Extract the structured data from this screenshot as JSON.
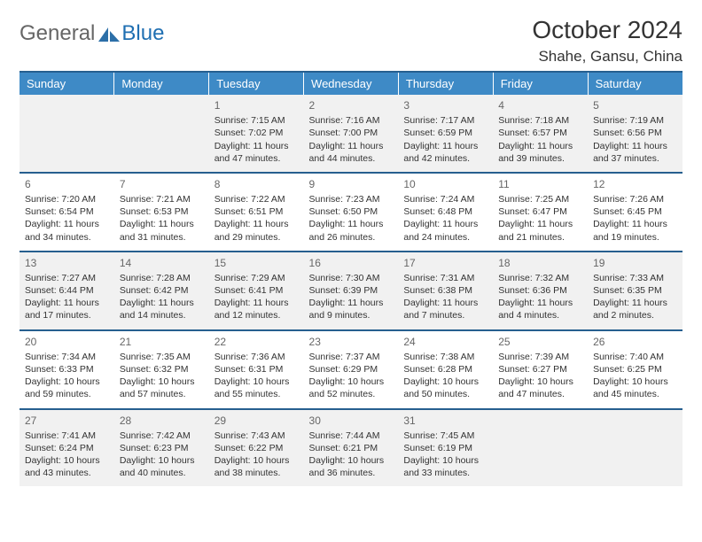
{
  "logo": {
    "part1": "General",
    "part2": "Blue"
  },
  "title": "October 2024",
  "location": "Shahe, Gansu, China",
  "colors": {
    "header_bg": "#3e8ac6",
    "divider": "#265f8f",
    "shade": "#f1f1f1",
    "text": "#333333",
    "logo_blue": "#1f6fb2"
  },
  "day_headers": [
    "Sunday",
    "Monday",
    "Tuesday",
    "Wednesday",
    "Thursday",
    "Friday",
    "Saturday"
  ],
  "weeks": [
    [
      null,
      null,
      {
        "n": "1",
        "sr": "Sunrise: 7:15 AM",
        "ss": "Sunset: 7:02 PM",
        "d1": "Daylight: 11 hours",
        "d2": "and 47 minutes."
      },
      {
        "n": "2",
        "sr": "Sunrise: 7:16 AM",
        "ss": "Sunset: 7:00 PM",
        "d1": "Daylight: 11 hours",
        "d2": "and 44 minutes."
      },
      {
        "n": "3",
        "sr": "Sunrise: 7:17 AM",
        "ss": "Sunset: 6:59 PM",
        "d1": "Daylight: 11 hours",
        "d2": "and 42 minutes."
      },
      {
        "n": "4",
        "sr": "Sunrise: 7:18 AM",
        "ss": "Sunset: 6:57 PM",
        "d1": "Daylight: 11 hours",
        "d2": "and 39 minutes."
      },
      {
        "n": "5",
        "sr": "Sunrise: 7:19 AM",
        "ss": "Sunset: 6:56 PM",
        "d1": "Daylight: 11 hours",
        "d2": "and 37 minutes."
      }
    ],
    [
      {
        "n": "6",
        "sr": "Sunrise: 7:20 AM",
        "ss": "Sunset: 6:54 PM",
        "d1": "Daylight: 11 hours",
        "d2": "and 34 minutes."
      },
      {
        "n": "7",
        "sr": "Sunrise: 7:21 AM",
        "ss": "Sunset: 6:53 PM",
        "d1": "Daylight: 11 hours",
        "d2": "and 31 minutes."
      },
      {
        "n": "8",
        "sr": "Sunrise: 7:22 AM",
        "ss": "Sunset: 6:51 PM",
        "d1": "Daylight: 11 hours",
        "d2": "and 29 minutes."
      },
      {
        "n": "9",
        "sr": "Sunrise: 7:23 AM",
        "ss": "Sunset: 6:50 PM",
        "d1": "Daylight: 11 hours",
        "d2": "and 26 minutes."
      },
      {
        "n": "10",
        "sr": "Sunrise: 7:24 AM",
        "ss": "Sunset: 6:48 PM",
        "d1": "Daylight: 11 hours",
        "d2": "and 24 minutes."
      },
      {
        "n": "11",
        "sr": "Sunrise: 7:25 AM",
        "ss": "Sunset: 6:47 PM",
        "d1": "Daylight: 11 hours",
        "d2": "and 21 minutes."
      },
      {
        "n": "12",
        "sr": "Sunrise: 7:26 AM",
        "ss": "Sunset: 6:45 PM",
        "d1": "Daylight: 11 hours",
        "d2": "and 19 minutes."
      }
    ],
    [
      {
        "n": "13",
        "sr": "Sunrise: 7:27 AM",
        "ss": "Sunset: 6:44 PM",
        "d1": "Daylight: 11 hours",
        "d2": "and 17 minutes."
      },
      {
        "n": "14",
        "sr": "Sunrise: 7:28 AM",
        "ss": "Sunset: 6:42 PM",
        "d1": "Daylight: 11 hours",
        "d2": "and 14 minutes."
      },
      {
        "n": "15",
        "sr": "Sunrise: 7:29 AM",
        "ss": "Sunset: 6:41 PM",
        "d1": "Daylight: 11 hours",
        "d2": "and 12 minutes."
      },
      {
        "n": "16",
        "sr": "Sunrise: 7:30 AM",
        "ss": "Sunset: 6:39 PM",
        "d1": "Daylight: 11 hours",
        "d2": "and 9 minutes."
      },
      {
        "n": "17",
        "sr": "Sunrise: 7:31 AM",
        "ss": "Sunset: 6:38 PM",
        "d1": "Daylight: 11 hours",
        "d2": "and 7 minutes."
      },
      {
        "n": "18",
        "sr": "Sunrise: 7:32 AM",
        "ss": "Sunset: 6:36 PM",
        "d1": "Daylight: 11 hours",
        "d2": "and 4 minutes."
      },
      {
        "n": "19",
        "sr": "Sunrise: 7:33 AM",
        "ss": "Sunset: 6:35 PM",
        "d1": "Daylight: 11 hours",
        "d2": "and 2 minutes."
      }
    ],
    [
      {
        "n": "20",
        "sr": "Sunrise: 7:34 AM",
        "ss": "Sunset: 6:33 PM",
        "d1": "Daylight: 10 hours",
        "d2": "and 59 minutes."
      },
      {
        "n": "21",
        "sr": "Sunrise: 7:35 AM",
        "ss": "Sunset: 6:32 PM",
        "d1": "Daylight: 10 hours",
        "d2": "and 57 minutes."
      },
      {
        "n": "22",
        "sr": "Sunrise: 7:36 AM",
        "ss": "Sunset: 6:31 PM",
        "d1": "Daylight: 10 hours",
        "d2": "and 55 minutes."
      },
      {
        "n": "23",
        "sr": "Sunrise: 7:37 AM",
        "ss": "Sunset: 6:29 PM",
        "d1": "Daylight: 10 hours",
        "d2": "and 52 minutes."
      },
      {
        "n": "24",
        "sr": "Sunrise: 7:38 AM",
        "ss": "Sunset: 6:28 PM",
        "d1": "Daylight: 10 hours",
        "d2": "and 50 minutes."
      },
      {
        "n": "25",
        "sr": "Sunrise: 7:39 AM",
        "ss": "Sunset: 6:27 PM",
        "d1": "Daylight: 10 hours",
        "d2": "and 47 minutes."
      },
      {
        "n": "26",
        "sr": "Sunrise: 7:40 AM",
        "ss": "Sunset: 6:25 PM",
        "d1": "Daylight: 10 hours",
        "d2": "and 45 minutes."
      }
    ],
    [
      {
        "n": "27",
        "sr": "Sunrise: 7:41 AM",
        "ss": "Sunset: 6:24 PM",
        "d1": "Daylight: 10 hours",
        "d2": "and 43 minutes."
      },
      {
        "n": "28",
        "sr": "Sunrise: 7:42 AM",
        "ss": "Sunset: 6:23 PM",
        "d1": "Daylight: 10 hours",
        "d2": "and 40 minutes."
      },
      {
        "n": "29",
        "sr": "Sunrise: 7:43 AM",
        "ss": "Sunset: 6:22 PM",
        "d1": "Daylight: 10 hours",
        "d2": "and 38 minutes."
      },
      {
        "n": "30",
        "sr": "Sunrise: 7:44 AM",
        "ss": "Sunset: 6:21 PM",
        "d1": "Daylight: 10 hours",
        "d2": "and 36 minutes."
      },
      {
        "n": "31",
        "sr": "Sunrise: 7:45 AM",
        "ss": "Sunset: 6:19 PM",
        "d1": "Daylight: 10 hours",
        "d2": "and 33 minutes."
      },
      null,
      null
    ]
  ],
  "shaded_rows": [
    0,
    2,
    4
  ]
}
